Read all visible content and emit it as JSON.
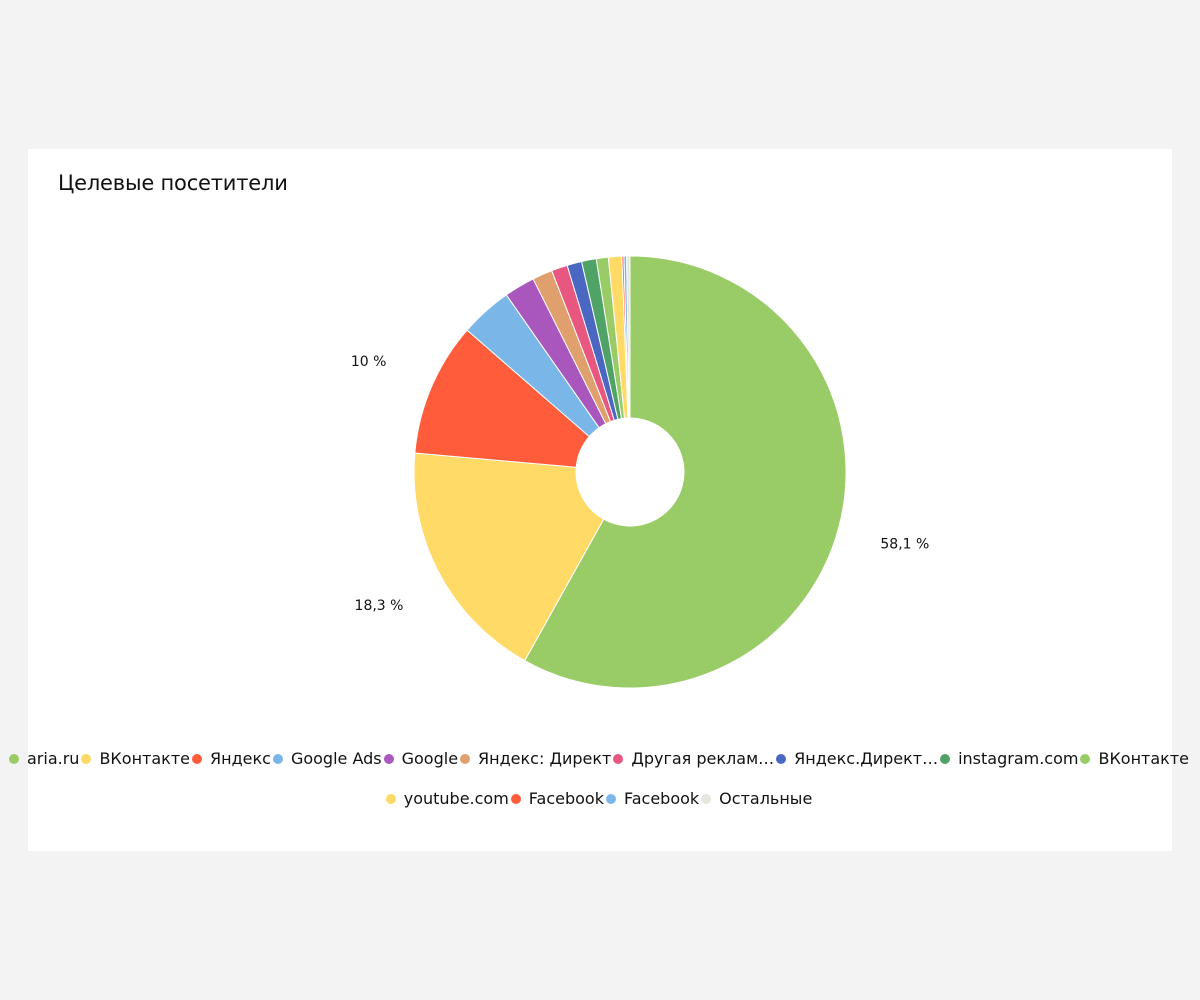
{
  "title": "Целевые посетители",
  "chart_data": {
    "type": "pie",
    "donut": true,
    "title": "Целевые посетители",
    "legend_position": "bottom",
    "slices": [
      {
        "label": "aria.ru",
        "value": 58.1,
        "color": "#99cc66",
        "data_label": "58,1 %"
      },
      {
        "label": "ВКонтакте",
        "value": 18.3,
        "color": "#ffda66",
        "data_label": "18,3 %"
      },
      {
        "label": "Яндекс",
        "value": 10.0,
        "color": "#ff5c3b",
        "data_label": "10 %"
      },
      {
        "label": "Google Ads",
        "value": 3.9,
        "color": "#7ab7e8",
        "data_label": ""
      },
      {
        "label": "Google",
        "value": 2.3,
        "color": "#a957bd",
        "data_label": ""
      },
      {
        "label": "Яндекс: Директ",
        "value": 1.5,
        "color": "#e0a06e",
        "data_label": ""
      },
      {
        "label": "Другая реклам…",
        "value": 1.2,
        "color": "#e8577f",
        "data_label": ""
      },
      {
        "label": "Яндекс.Директ…",
        "value": 1.1,
        "color": "#4a67c2",
        "data_label": ""
      },
      {
        "label": "instagram.com",
        "value": 1.1,
        "color": "#4fa366",
        "data_label": ""
      },
      {
        "label": "ВКонтакте",
        "value": 0.9,
        "color": "#99cc66",
        "data_label": ""
      },
      {
        "label": "youtube.com",
        "value": 1.0,
        "color": "#ffda66",
        "data_label": ""
      },
      {
        "label": "Facebook",
        "value": 0.15,
        "color": "#ff5c3b",
        "data_label": ""
      },
      {
        "label": "Facebook",
        "value": 0.2,
        "color": "#7ab7e8",
        "data_label": ""
      },
      {
        "label": "Остальные",
        "value": 0.25,
        "color": "#e6e6de",
        "data_label": ""
      }
    ]
  }
}
